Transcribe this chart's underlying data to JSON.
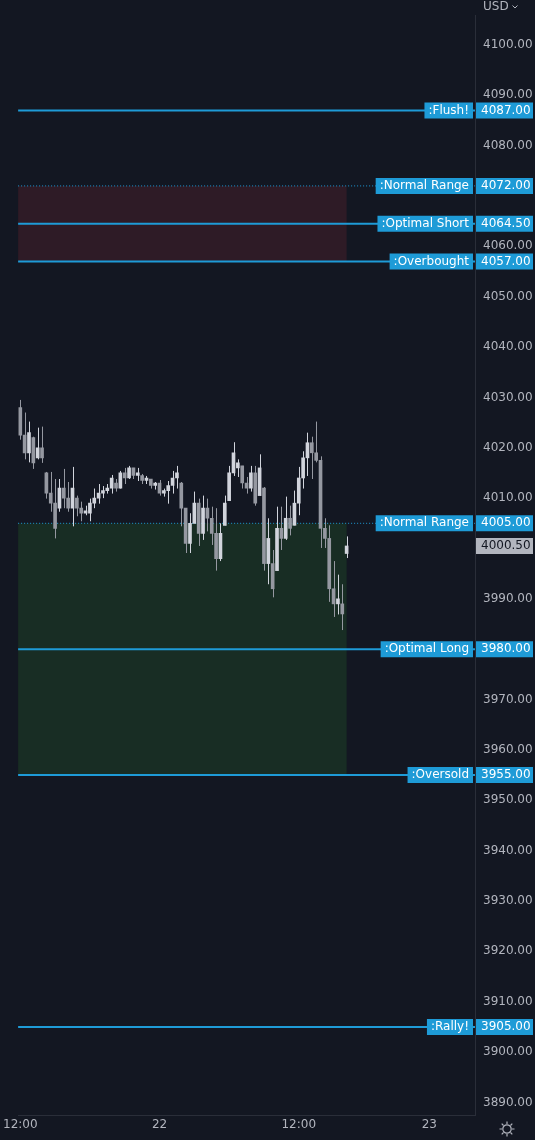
{
  "chart_data": {
    "type": "candlestick",
    "colors": [
      "#9598a1",
      "#9598a1",
      "#d1d4dc",
      "#9598a1",
      "#d1d4dc",
      "#9598a1",
      "#9598a1",
      "#9598a1",
      "#9598a1",
      "#d1d4dc",
      "#9598a1",
      "#9598a1",
      "#d1d4dc",
      "#9598a1",
      "#9598a1",
      "#d1d4dc",
      "#d1d4dc",
      "#d1d4dc",
      "#d1d4dc",
      "#d1d4dc",
      "#d1d4dc",
      "#d1d4dc",
      "#9598a1",
      "#d1d4dc",
      "#9598a1",
      "#d1d4dc",
      "#9598a1",
      "#d1d4dc",
      "#9598a1",
      "#d1d4dc",
      "#9598a1",
      "#d1d4dc",
      "#9598a1",
      "#d1d4dc",
      "#d1d4dc",
      "#d1d4dc",
      "#d1d4dc",
      "#9598a1",
      "#9598a1",
      "#d1d4dc",
      "#d1d4dc",
      "#9598a1",
      "#d1d4dc",
      "#9598a1",
      "#9598a1",
      "#9598a1",
      "#d1d4dc",
      "#d1d4dc",
      "#d1d4dc",
      "#d1d4dc",
      "#d1d4dc",
      "#9598a1",
      "#9598a1",
      "#d1d4dc",
      "#9598a1",
      "#d1d4dc",
      "#9598a1",
      "#d1d4dc",
      "#9598a1",
      "#d1d4dc",
      "#9598a1",
      "#d1d4dc",
      "#9598a1",
      "#d1d4dc",
      "#d1d4dc",
      "#d1d4dc",
      "#d1d4dc",
      "#9598a1",
      "#9598a1",
      "#9598a1",
      "#9598a1",
      "#9598a1",
      "#9598a1",
      "#d1d4dc",
      "#9598a1",
      "#d1d4dc",
      null,
      null,
      null,
      null,
      null,
      null,
      null,
      null,
      null,
      null,
      null,
      null,
      null,
      null,
      null,
      null,
      null,
      null,
      null,
      null,
      null,
      null,
      null,
      null,
      null,
      null,
      null,
      null,
      null
    ],
    "categories": [
      "12:00",
      null,
      null,
      null,
      null,
      null,
      null,
      null,
      null,
      null,
      null,
      null,
      null,
      null,
      null,
      null,
      null,
      null,
      null,
      null,
      null,
      null,
      null,
      null,
      null,
      null,
      null,
      null,
      null,
      null,
      null,
      null,
      "22",
      null,
      null,
      null,
      null,
      null,
      null,
      null,
      null,
      null,
      null,
      null,
      null,
      null,
      null,
      null,
      null,
      null,
      null,
      null,
      null,
      null,
      null,
      null,
      null,
      null,
      null,
      null,
      null,
      null,
      null,
      null,
      "12:00",
      null,
      null,
      null,
      null,
      null,
      null,
      null,
      null,
      null,
      null,
      null,
      null,
      null,
      null,
      null,
      null,
      null,
      null,
      null,
      null,
      null,
      null,
      null,
      null,
      null,
      null,
      null,
      null,
      null,
      "23",
      null,
      null,
      null,
      null,
      null,
      null,
      null,
      null,
      null,
      null
    ],
    "ohlc": [
      [
        4028,
        4029.5,
        4021.6,
        4022.5
      ],
      [
        4022.5,
        4027,
        4017.7,
        4019
      ],
      [
        4019,
        4025.2,
        4017.1,
        4023
      ],
      [
        4022,
        4022.2,
        4015.8,
        4017
      ],
      [
        4018,
        4024,
        4017.7,
        4020
      ],
      [
        4020,
        4024.2,
        4017,
        4018
      ],
      [
        4015,
        4015.2,
        4009.9,
        4011
      ],
      [
        4011,
        4015.2,
        4007.3,
        4009
      ],
      [
        4009,
        4013.8,
        4002,
        4004
      ],
      [
        4008,
        4013.8,
        4007.3,
        4012
      ],
      [
        4012,
        4015.8,
        4008,
        4010
      ],
      [
        4010,
        4013.2,
        4007.3,
        4008
      ],
      [
        4008,
        4016.2,
        4004.4,
        4012
      ],
      [
        4010,
        4010.5,
        4006.4,
        4008
      ],
      [
        4008,
        4009.3,
        4005.4,
        4007
      ],
      [
        4007,
        4008.5,
        4006.6,
        4007.5
      ],
      [
        4007,
        4009.9,
        4005.4,
        4009
      ],
      [
        4009,
        4011.9,
        4008,
        4010
      ],
      [
        4010,
        4012.8,
        4008.9,
        4011
      ],
      [
        4011,
        4012.4,
        4010,
        4011.5
      ],
      [
        4011.5,
        4012.8,
        4010.9,
        4012
      ],
      [
        4012,
        4014.6,
        4010.9,
        4014
      ],
      [
        4013,
        4013.8,
        4011.3,
        4012
      ],
      [
        4012,
        4015.4,
        4011.9,
        4015
      ],
      [
        4015,
        4016,
        4012.8,
        4014
      ],
      [
        4014,
        4016.4,
        4013.8,
        4016
      ],
      [
        4016,
        4016,
        4013.8,
        4014.5
      ],
      [
        4014.5,
        4016,
        4013.4,
        4015
      ],
      [
        4014.5,
        4014.8,
        4012.8,
        4013.5
      ],
      [
        4013.5,
        4014.4,
        4012.8,
        4014
      ],
      [
        4013.8,
        4013.8,
        4011.9,
        4012.5
      ],
      [
        4012.5,
        4013.2,
        4011.7,
        4013
      ],
      [
        4013,
        4013.6,
        4010.5,
        4011
      ],
      [
        4011,
        4011.9,
        4010.3,
        4011.5
      ],
      [
        4011.5,
        4013.4,
        4008.9,
        4012.5
      ],
      [
        4012.5,
        4015.4,
        4010.9,
        4014
      ],
      [
        4014,
        4016.4,
        4011.9,
        4015
      ],
      [
        4013,
        4013.2,
        4004.4,
        4008
      ],
      [
        4008,
        4008,
        3999.1,
        4001
      ],
      [
        4001,
        4007,
        3999.1,
        4005
      ],
      [
        4005,
        4011.3,
        4005,
        4009
      ],
      [
        4009,
        4009.9,
        4000.5,
        4003
      ],
      [
        4003,
        4010.5,
        4001.7,
        4008
      ],
      [
        4008,
        4009.9,
        4003.4,
        4006
      ],
      [
        4006,
        4008.3,
        4000.7,
        4003
      ],
      [
        4003,
        4008,
        3995.6,
        3998
      ],
      [
        3998,
        4005,
        3997.5,
        4003
      ],
      [
        4004.6,
        4010.5,
        4004.6,
        4009
      ],
      [
        4009.5,
        4016.4,
        4009.5,
        4015
      ],
      [
        4015,
        4021.1,
        4014.4,
        4019
      ],
      [
        4016,
        4017.7,
        4014.2,
        4017
      ],
      [
        4016.4,
        4016.4,
        4011.9,
        4013
      ],
      [
        4013,
        4014.2,
        4010.9,
        4012
      ],
      [
        4012,
        4016.4,
        4011.3,
        4015
      ],
      [
        4015,
        4016.4,
        4008.5,
        4009
      ],
      [
        4010.5,
        4018.7,
        4010.5,
        4016
      ],
      [
        4012,
        4012.2,
        3995.6,
        3997
      ],
      [
        3997,
        4006,
        3992.9,
        4002
      ],
      [
        3997,
        3999.7,
        3990.3,
        3992
      ],
      [
        3995.6,
        4008.3,
        3995.6,
        4004
      ],
      [
        4004,
        4008.3,
        3999.7,
        4002
      ],
      [
        4002,
        4010.3,
        4001.7,
        4006
      ],
      [
        4006,
        4008.5,
        4002.6,
        4004
      ],
      [
        4004.6,
        4011.5,
        4004.6,
        4009
      ],
      [
        4009,
        4016.2,
        4006.6,
        4014
      ],
      [
        4014,
        4019.3,
        4011.9,
        4018
      ],
      [
        4018,
        4023,
        4014.4,
        4021
      ],
      [
        4021,
        4022.2,
        4013.8,
        4019
      ],
      [
        4019,
        4025.2,
        4017.1,
        4017.5
      ],
      [
        4017.5,
        4018.3,
        4000.1,
        4004
      ],
      [
        4004,
        4006,
        4000.1,
        4002
      ],
      [
        4002,
        4004.6,
        3989.4,
        3992
      ],
      [
        3992,
        3997.5,
        3986.4,
        3989
      ],
      [
        3989,
        3994.8,
        3986.9,
        3990
      ],
      [
        3989,
        3992.9,
        3983.8,
        3987
      ],
      [
        3999,
        4002.4,
        3998.1,
        4000.5
      ],
      null,
      null,
      null,
      null,
      null,
      null,
      null,
      null,
      null,
      null,
      null,
      null,
      null,
      null,
      null,
      null,
      null,
      null,
      null,
      null,
      null,
      null,
      null,
      null,
      null,
      null,
      null,
      null,
      null
    ],
    "ylim": [
      3887.5,
      4105.9
    ],
    "yticks": [
      {
        "value": 3890,
        "label": "3890.00"
      },
      {
        "value": 3900,
        "label": "3900.00"
      },
      {
        "value": 3910,
        "label": "3910.00"
      },
      {
        "value": 3920,
        "label": "3920.00"
      },
      {
        "value": 3930,
        "label": "3930.00"
      },
      {
        "value": 3940,
        "label": "3940.00"
      },
      {
        "value": 3950,
        "label": "3950.00"
      },
      {
        "value": 3960,
        "label": "3960.00"
      },
      {
        "value": 3970,
        "label": "3970.00"
      },
      {
        "value": 3990,
        "label": "3990.00"
      },
      {
        "value": 4010,
        "label": "4010.00"
      },
      {
        "value": 4020,
        "label": "4020.00"
      },
      {
        "value": 4030,
        "label": "4030.00"
      },
      {
        "value": 4040,
        "label": "4040.00"
      },
      {
        "value": 4050,
        "label": "4050.00"
      },
      {
        "value": 4060,
        "label": "4060.00"
      },
      {
        "value": 4080,
        "label": "4080.00"
      },
      {
        "value": 4090,
        "label": "4090.00"
      },
      {
        "value": 4100,
        "label": "4100.00"
      }
    ],
    "bands": [
      {
        "axis": "y",
        "from": 4057,
        "to": 4072,
        "color": "#2e1b26"
      },
      {
        "axis": "y",
        "from": 3955,
        "to": 4005,
        "color": "#182d24"
      }
    ],
    "ref_lines": [
      {
        "axis": "y",
        "value": 4087,
        "label": ":Flush!",
        "color": "#1e9bd7",
        "line_style": "solid"
      },
      {
        "axis": "y",
        "value": 4072,
        "label": ":Normal Range",
        "color": "#1e9bd7",
        "line_style": "dotted"
      },
      {
        "axis": "y",
        "value": 4064.5,
        "label": ":Optimal Short",
        "color": "#1e9bd7",
        "line_style": "solid"
      },
      {
        "axis": "y",
        "value": 4057,
        "label": ":Overbought",
        "color": "#1e9bd7",
        "line_style": "solid"
      },
      {
        "axis": "y",
        "value": 4005,
        "label": ":Normal Range",
        "color": "#1e9bd7",
        "line_style": "dotted"
      },
      {
        "axis": "y",
        "value": 3980,
        "label": ":Optimal Long",
        "color": "#1e9bd7",
        "line_style": "solid"
      },
      {
        "axis": "y",
        "value": 3955,
        "label": ":Oversold",
        "color": "#1e9bd7",
        "line_style": "solid"
      },
      {
        "axis": "y",
        "value": 3905,
        "label": ":Rally!",
        "color": "#1e9bd7",
        "line_style": "solid"
      }
    ],
    "annotations": [
      "USD",
      "4087.00",
      "4072.00",
      "4064.50",
      "4057.00",
      "4005.00",
      "3980.00",
      "3955.00",
      "3905.00",
      "4000.50"
    ]
  }
}
